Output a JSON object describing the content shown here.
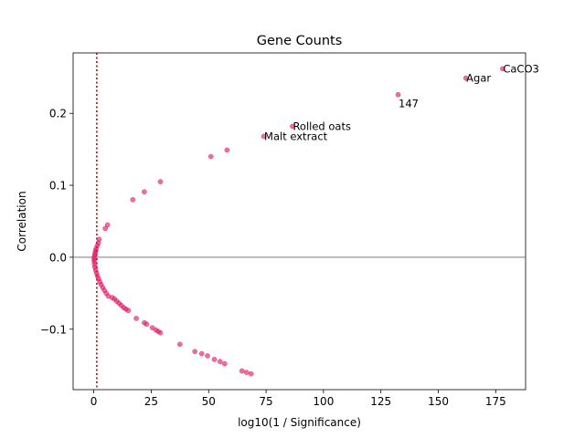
{
  "chart_data": {
    "type": "scatter",
    "title": "Gene Counts",
    "xlabel": "log10(1 / Significance)",
    "ylabel": "Correlation",
    "xlim": [
      -9,
      188
    ],
    "ylim": [
      -0.184,
      0.284
    ],
    "xticks": [
      0,
      25,
      50,
      75,
      100,
      125,
      150,
      175
    ],
    "xtick_labels": [
      "0",
      "25",
      "50",
      "75",
      "100",
      "125",
      "150",
      "175"
    ],
    "yticks": [
      -0.1,
      0.0,
      0.1,
      0.2
    ],
    "ytick_labels": [
      "−0.1",
      "0.0",
      "0.1",
      "0.2"
    ],
    "grid": false,
    "colors": {
      "point": "#e0115f",
      "threshold_line": "#cc0000",
      "zero_line": "#666666"
    },
    "reference_lines": [
      {
        "orientation": "vertical",
        "x": 1.3,
        "style": "dotted"
      },
      {
        "orientation": "horizontal",
        "y": 0.0,
        "style": "solid"
      }
    ],
    "annotations": [
      {
        "label": "CaCO3",
        "x": 178,
        "y": 0.262
      },
      {
        "label": "Agar",
        "x": 162,
        "y": 0.249
      },
      {
        "label": "147",
        "x": 132.5,
        "y": 0.226,
        "label_position": "below"
      },
      {
        "label": "Rolled oats",
        "x": 86.5,
        "y": 0.182
      },
      {
        "label": "Malt extract",
        "x": 74,
        "y": 0.168
      }
    ],
    "points": [
      [
        178,
        0.262
      ],
      [
        162,
        0.249
      ],
      [
        132.5,
        0.226
      ],
      [
        86.5,
        0.182
      ],
      [
        74,
        0.168
      ],
      [
        58,
        0.149
      ],
      [
        51,
        0.14
      ],
      [
        29,
        0.105
      ],
      [
        22,
        0.091
      ],
      [
        17,
        0.08
      ],
      [
        6,
        0.045
      ],
      [
        5,
        0.04
      ],
      [
        2.3,
        0.025
      ],
      [
        2.0,
        0.02
      ],
      [
        1.5,
        0.016
      ],
      [
        1.0,
        0.012
      ],
      [
        0.8,
        0.009
      ],
      [
        0.6,
        0.006
      ],
      [
        0.4,
        0.003
      ],
      [
        0.2,
        0.0
      ],
      [
        0.15,
        -0.003
      ],
      [
        0.2,
        -0.006
      ],
      [
        0.3,
        -0.01
      ],
      [
        0.5,
        -0.014
      ],
      [
        0.8,
        -0.018
      ],
      [
        1.2,
        -0.022
      ],
      [
        1.6,
        -0.026
      ],
      [
        2.1,
        -0.03
      ],
      [
        2.6,
        -0.034
      ],
      [
        3.2,
        -0.038
      ],
      [
        3.9,
        -0.042
      ],
      [
        4.6,
        -0.046
      ],
      [
        5.4,
        -0.05
      ],
      [
        6.3,
        -0.054
      ],
      [
        8,
        -0.056
      ],
      [
        9,
        -0.058
      ],
      [
        10,
        -0.061
      ],
      [
        11,
        -0.064
      ],
      [
        12,
        -0.067
      ],
      [
        13,
        -0.07
      ],
      [
        14,
        -0.072
      ],
      [
        15,
        -0.074
      ],
      [
        18.5,
        -0.085
      ],
      [
        22,
        -0.091
      ],
      [
        23,
        -0.093
      ],
      [
        25.5,
        -0.098
      ],
      [
        27,
        -0.101
      ],
      [
        28,
        -0.103
      ],
      [
        29,
        -0.105
      ],
      [
        37.5,
        -0.121
      ],
      [
        44,
        -0.131
      ],
      [
        47,
        -0.134
      ],
      [
        49.5,
        -0.137
      ],
      [
        52.5,
        -0.142
      ],
      [
        55,
        -0.145
      ],
      [
        57,
        -0.148
      ],
      [
        64.5,
        -0.158
      ],
      [
        66.5,
        -0.16
      ],
      [
        68.5,
        -0.162
      ]
    ]
  }
}
